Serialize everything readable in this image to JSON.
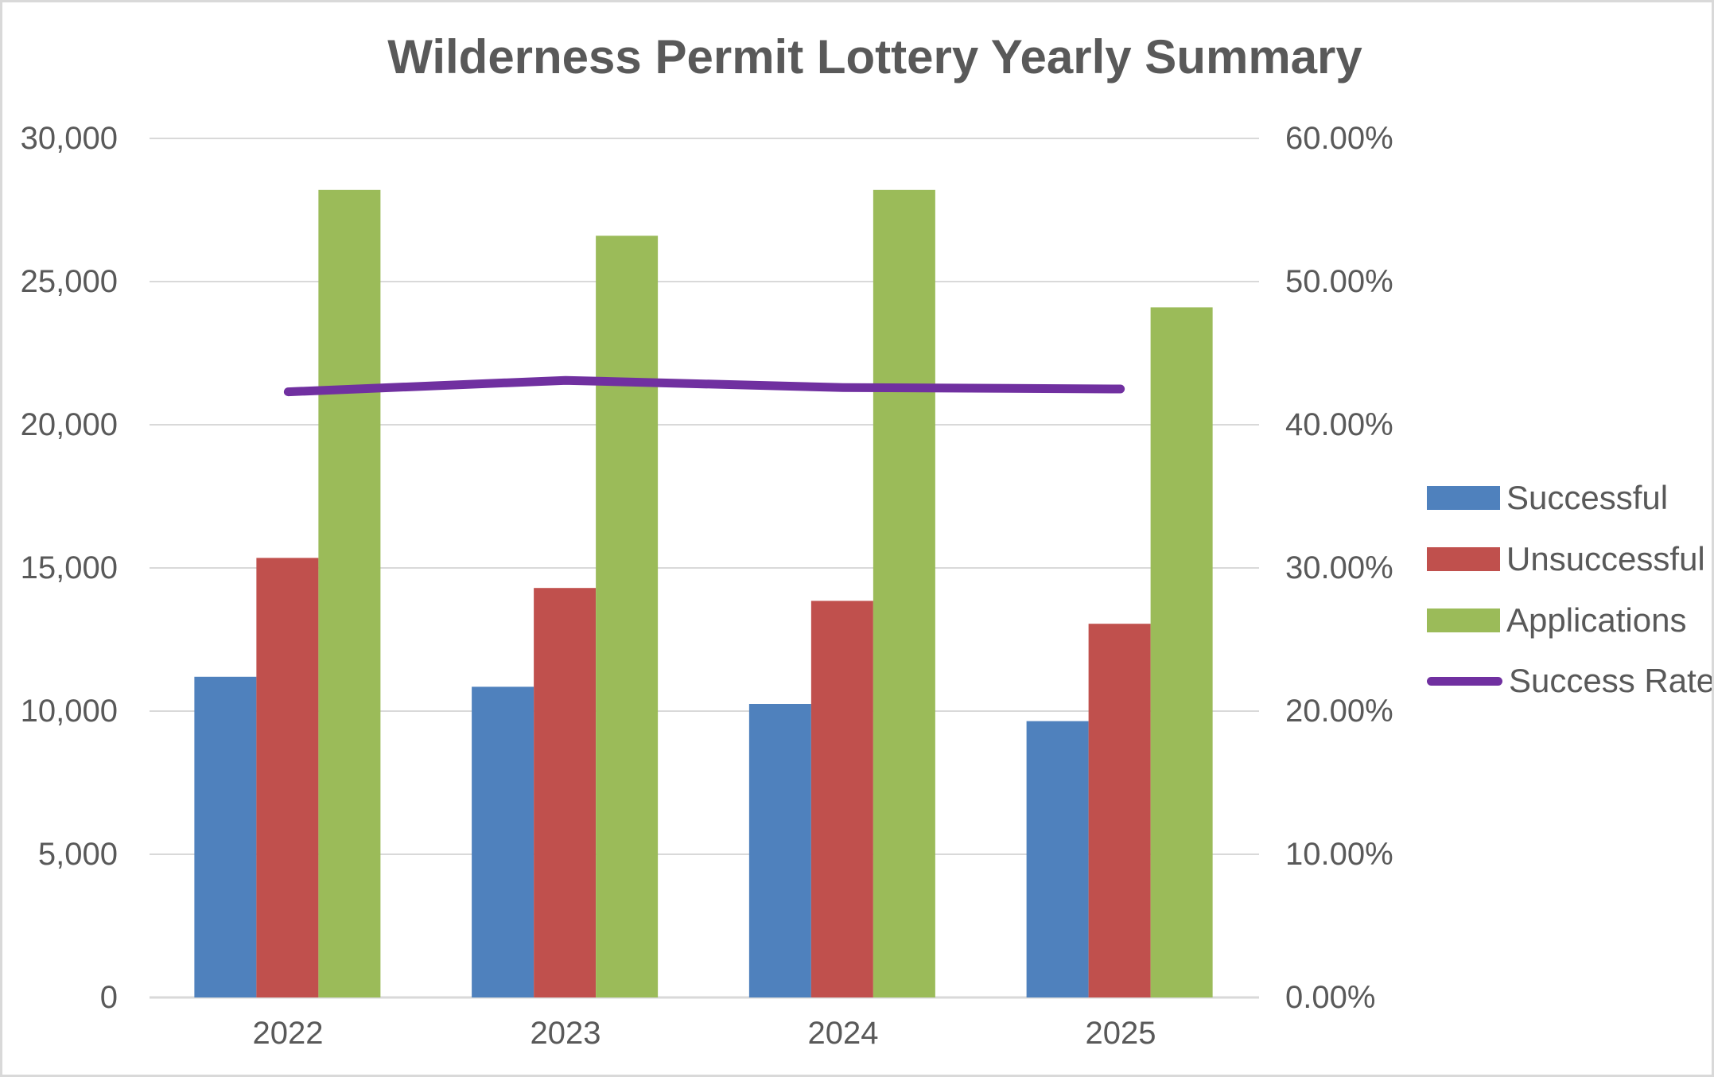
{
  "colors": {
    "background": "#ffffff",
    "canvas_border": "#d9d9d9",
    "grid": "#d9d9d9",
    "axis_line": "#d9d9d9",
    "text": "#595959",
    "successful": "#4f81bd",
    "unsuccessful": "#c0504d",
    "applications": "#9bbb59",
    "success_rate": "#7030a0"
  },
  "axes": {
    "left": {
      "ticks": [
        "30,000",
        "25,000",
        "20,000",
        "15,000",
        "10,000",
        "5,000",
        "0"
      ]
    },
    "right": {
      "ticks": [
        "60.00%",
        "50.00%",
        "40.00%",
        "30.00%",
        "20.00%",
        "10.00%",
        "0.00%"
      ]
    },
    "x": {
      "categories": [
        "2022",
        "2023",
        "2024",
        "2025"
      ]
    }
  },
  "legend": {
    "position": "right",
    "items": [
      {
        "label": "Successful"
      },
      {
        "label": "Unsuccessful"
      },
      {
        "label": "Applications"
      },
      {
        "label": "Success Rate"
      }
    ]
  },
  "chart_data": {
    "type": "bar",
    "subtype": "combo bar + line, dual axis",
    "title": "Wilderness Permit Lottery Yearly Summary",
    "categories": [
      "2022",
      "2023",
      "2024",
      "2025"
    ],
    "series": [
      {
        "name": "Successful",
        "type": "bar",
        "axis": "left",
        "color": "#4f81bd",
        "values": [
          11200,
          10850,
          10250,
          9650
        ]
      },
      {
        "name": "Unsuccessful",
        "type": "bar",
        "axis": "left",
        "color": "#c0504d",
        "values": [
          15350,
          14300,
          13850,
          13050
        ]
      },
      {
        "name": "Applications",
        "type": "bar",
        "axis": "left",
        "color": "#9bbb59",
        "values": [
          28200,
          26600,
          28200,
          24100
        ]
      },
      {
        "name": "Success Rate",
        "type": "line",
        "axis": "right",
        "color": "#7030a0",
        "values": [
          42.3,
          43.1,
          42.6,
          42.5
        ],
        "unit": "%"
      }
    ],
    "xlabel": "",
    "ylabel_left": "",
    "ylabel_right": "",
    "left_ylim": [
      0,
      30000
    ],
    "right_ylim": [
      0,
      60
    ],
    "grid": true,
    "legend_position": "right"
  }
}
